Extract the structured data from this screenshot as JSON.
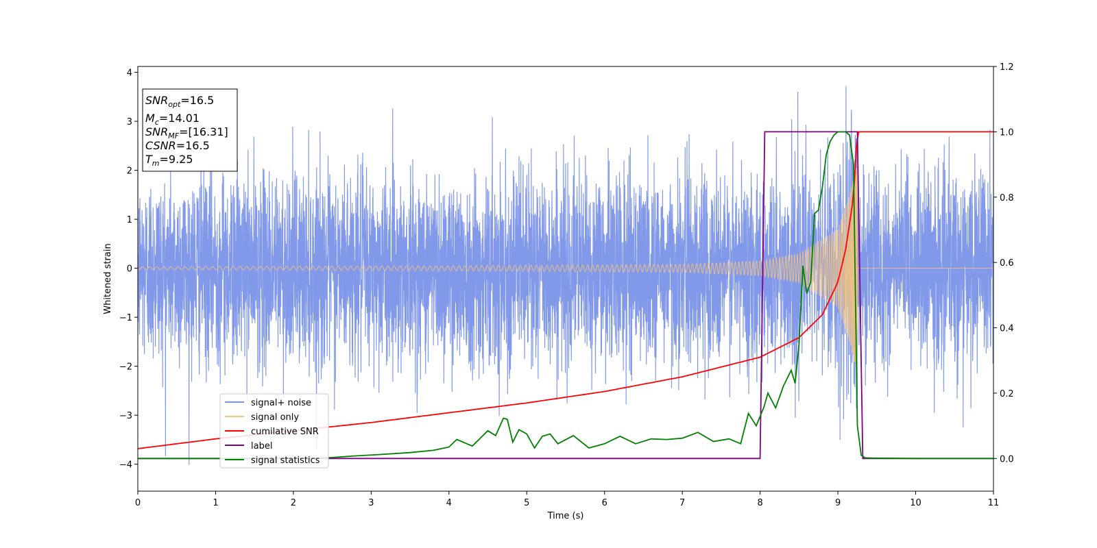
{
  "chart_data": {
    "type": "line",
    "title": "",
    "xlabel": "Time (s)",
    "ylabel": "Whitened strain",
    "y2label": "",
    "xlim": [
      0,
      11
    ],
    "ylim": [
      -4.55,
      4.12
    ],
    "y2lim": [
      -0.1,
      1.2
    ],
    "xticks": [
      "0",
      "1",
      "2",
      "3",
      "4",
      "5",
      "6",
      "7",
      "8",
      "9",
      "10",
      "11"
    ],
    "yticks": [
      "−4",
      "−3",
      "−2",
      "−1",
      "0",
      "1",
      "2",
      "3",
      "4"
    ],
    "y2ticks": [
      "0.0",
      "0.2",
      "0.4",
      "0.6",
      "0.8",
      "1.0",
      "1.2"
    ],
    "grid": false,
    "legend_position": "lower-left",
    "info_box": {
      "snr_opt": "=16.5",
      "mc": "=14.01",
      "snr_mf": "=[16.31]",
      "csnr": "=16.5",
      "tm": "=9.25"
    },
    "series": [
      {
        "name": "signal+ noise",
        "axis": "left",
        "color": "#7b94e8",
        "description": "whitened noise with std ~1, peaks near ±3.7",
        "amplitude_range": [
          -4.15,
          3.72
        ]
      },
      {
        "name": "signal only",
        "axis": "left",
        "color": "#f5c37d",
        "description": "chirp, amplitude growing to ~2.2 near merger at t=9.25",
        "amplitude_envelope": {
          "t": [
            0,
            4,
            7,
            8,
            8.5,
            9.0,
            9.15,
            9.25
          ],
          "a": [
            0.03,
            0.05,
            0.08,
            0.15,
            0.3,
            0.8,
            1.5,
            2.2
          ]
        },
        "merger_time": 9.25
      },
      {
        "name": "cumilative SNR",
        "axis": "right",
        "color": "#ff0000",
        "x": [
          0,
          1,
          2,
          3,
          4,
          5,
          6,
          7,
          7.5,
          8,
          8.5,
          8.8,
          9.0,
          9.1,
          9.2,
          9.25,
          9.3,
          10,
          11
        ],
        "y": [
          0.03,
          0.06,
          0.085,
          0.11,
          0.14,
          0.17,
          0.205,
          0.25,
          0.28,
          0.31,
          0.37,
          0.44,
          0.54,
          0.64,
          0.8,
          1.0,
          1.0,
          1.0,
          1.0
        ]
      },
      {
        "name": "label",
        "axis": "right",
        "color": "#800080",
        "x": [
          0,
          8.0,
          8.06,
          9.25,
          9.32,
          11
        ],
        "y": [
          0,
          0,
          1,
          1,
          0,
          0
        ]
      },
      {
        "name": "signal statistics",
        "axis": "right",
        "color": "#008000",
        "x": [
          0,
          1,
          2,
          2.5,
          2.8,
          3.1,
          3.5,
          3.8,
          4.0,
          4.1,
          4.3,
          4.5,
          4.6,
          4.7,
          4.75,
          4.82,
          4.9,
          5.0,
          5.1,
          5.2,
          5.3,
          5.4,
          5.6,
          5.8,
          6.0,
          6.2,
          6.4,
          6.6,
          6.8,
          7.0,
          7.2,
          7.4,
          7.6,
          7.75,
          7.85,
          7.95,
          8.05,
          8.1,
          8.2,
          8.3,
          8.4,
          8.45,
          8.5,
          8.55,
          8.6,
          8.65,
          8.7,
          8.75,
          8.8,
          8.85,
          8.9,
          8.95,
          9.0,
          9.05,
          9.1,
          9.15,
          9.2,
          9.25,
          9.3,
          9.35,
          9.5,
          10,
          11
        ],
        "y": [
          0,
          0,
          0.001,
          0.003,
          0.008,
          0.012,
          0.018,
          0.025,
          0.035,
          0.058,
          0.038,
          0.085,
          0.07,
          0.123,
          0.12,
          0.05,
          0.088,
          0.075,
          0.032,
          0.068,
          0.075,
          0.045,
          0.07,
          0.032,
          0.045,
          0.068,
          0.045,
          0.06,
          0.058,
          0.062,
          0.08,
          0.052,
          0.06,
          0.045,
          0.138,
          0.1,
          0.158,
          0.2,
          0.155,
          0.222,
          0.27,
          0.23,
          0.35,
          0.59,
          0.505,
          0.54,
          0.75,
          0.76,
          0.83,
          0.93,
          0.97,
          0.99,
          1.0,
          1.0,
          1.0,
          0.99,
          0.9,
          0.1,
          0.01,
          0.002,
          0.001,
          0.0,
          0.0
        ]
      }
    ]
  }
}
